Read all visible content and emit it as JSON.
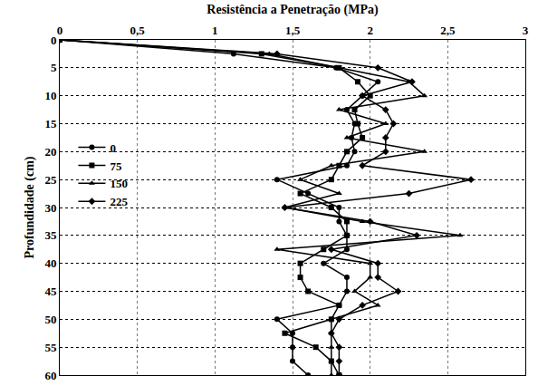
{
  "chart_data": {
    "type": "line",
    "x_label": "Resistência a Penetração (MPa)",
    "y_label": "Profundidade (cm)",
    "y": [
      0,
      2.5,
      5,
      7.5,
      10,
      12.5,
      15,
      17.5,
      20,
      22.5,
      25,
      27.5,
      30,
      32.5,
      35,
      37.5,
      40,
      42.5,
      45,
      47.5,
      50,
      52.5,
      55,
      57.5,
      60
    ],
    "series": [
      {
        "name": "0",
        "color": "#000000",
        "marker": "circle",
        "values": [
          0,
          1.12,
          1.78,
          2.05,
          1.95,
          1.85,
          1.9,
          1.88,
          1.9,
          1.85,
          1.4,
          1.6,
          1.8,
          1.8,
          1.85,
          1.85,
          1.7,
          1.85,
          1.85,
          1.8,
          1.4,
          1.5,
          1.5,
          1.5,
          1.6
        ]
      },
      {
        "name": "75",
        "color": "#000000",
        "marker": "square",
        "values": [
          0,
          1.3,
          1.8,
          1.92,
          2.0,
          1.9,
          1.92,
          1.95,
          1.85,
          1.8,
          1.75,
          1.55,
          1.75,
          1.85,
          1.85,
          1.7,
          1.55,
          1.55,
          1.6,
          1.8,
          1.75,
          1.45,
          1.65,
          1.75,
          1.8
        ]
      },
      {
        "name": "150",
        "color": "#000000",
        "marker": "triangle-up",
        "values": [
          0,
          1.35,
          1.8,
          2.25,
          2.35,
          1.8,
          2.1,
          1.85,
          2.35,
          1.75,
          1.55,
          1.8,
          1.45,
          1.95,
          2.58,
          1.4,
          2.0,
          2.0,
          1.9,
          2.05,
          1.75,
          1.75,
          1.75,
          1.75,
          1.75
        ]
      },
      {
        "name": "225",
        "color": "#000000",
        "marker": "diamond",
        "values": [
          0,
          1.4,
          2.05,
          2.27,
          1.95,
          2.1,
          2.15,
          2.1,
          2.1,
          1.95,
          2.65,
          2.25,
          1.45,
          2.0,
          2.3,
          1.75,
          2.05,
          2.05,
          2.18,
          1.95,
          1.8,
          1.75,
          1.8,
          1.8,
          1.8
        ]
      }
    ],
    "xlim": [
      0,
      3
    ],
    "xticks": [
      0,
      {
        "value": 0.5,
        "label": "0,5"
      },
      1,
      {
        "value": 1.5,
        "label": "1,5"
      },
      2,
      {
        "value": 2.5,
        "label": "2,5"
      },
      3
    ],
    "ylim": [
      60,
      0
    ],
    "yticks": [
      0,
      5,
      10,
      15,
      20,
      25,
      30,
      35,
      40,
      45,
      50,
      55,
      60
    ],
    "grid": true,
    "legend": "left"
  }
}
